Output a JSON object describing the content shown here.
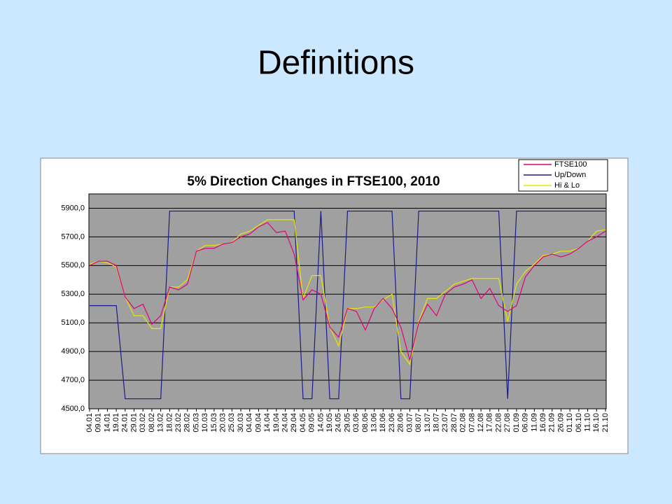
{
  "slide": {
    "title": "Definitions"
  },
  "chart_data": {
    "type": "line",
    "title": "5% Direction Changes in FTSE100, 2010",
    "categories": [
      "04.01",
      "09.01",
      "14.01",
      "19.01",
      "24.01",
      "29.01",
      "03.02",
      "08.02",
      "13.02",
      "18.02",
      "23.02",
      "28.02",
      "05.03",
      "10.03",
      "15.03",
      "20.03",
      "25.03",
      "30.03",
      "04.04",
      "09.04",
      "14.04",
      "19.04",
      "24.04",
      "29.04",
      "04.05",
      "09.05",
      "14.05",
      "19.05",
      "24.05",
      "29.05",
      "03.06",
      "08.06",
      "13.06",
      "18.06",
      "23.06",
      "28.06",
      "03.07",
      "08.07",
      "13.07",
      "18.07",
      "23.07",
      "28.07",
      "02.08",
      "07.08",
      "12.08",
      "17.08",
      "22.08",
      "27.08",
      "01.09",
      "06.09",
      "11.09",
      "16.09",
      "21.09",
      "26.09",
      "01.10",
      "06.10",
      "11.10",
      "16.10",
      "21.10"
    ],
    "series": [
      {
        "name": "FTSE100",
        "color": "#e0007a",
        "values": [
          5500,
          5530,
          5530,
          5500,
          5280,
          5200,
          5230,
          5090,
          5150,
          5350,
          5330,
          5370,
          5600,
          5620,
          5620,
          5650,
          5660,
          5700,
          5720,
          5770,
          5800,
          5730,
          5740,
          5580,
          5260,
          5330,
          5300,
          5070,
          5000,
          5200,
          5180,
          5050,
          5200,
          5270,
          5200,
          5070,
          4840,
          5100,
          5230,
          5150,
          5300,
          5350,
          5370,
          5400,
          5270,
          5340,
          5220,
          5180,
          5220,
          5420,
          5500,
          5560,
          5580,
          5560,
          5580,
          5620,
          5670,
          5700,
          5740
        ]
      },
      {
        "name": "Up/Down",
        "color": "#1a1a8c",
        "values": [
          5220,
          5220,
          5220,
          5220,
          4570,
          4570,
          4570,
          4570,
          4570,
          5880,
          5880,
          5880,
          5880,
          5880,
          5880,
          5880,
          5880,
          5880,
          5880,
          5880,
          5880,
          5880,
          5880,
          5880,
          4570,
          4570,
          5880,
          4570,
          4570,
          5880,
          5880,
          5880,
          5880,
          5880,
          5880,
          4570,
          4570,
          5880,
          5880,
          5880,
          5880,
          5880,
          5880,
          5880,
          5880,
          5880,
          5880,
          4570,
          5880,
          5880,
          5880,
          5880,
          5880,
          5880,
          5880,
          5880,
          5880,
          5880,
          5880
        ]
      },
      {
        "name": "Hi & Lo",
        "color": "#e8e800",
        "values": [
          5510,
          5530,
          5520,
          5490,
          5280,
          5150,
          5150,
          5060,
          5060,
          5350,
          5350,
          5400,
          5600,
          5640,
          5640,
          5650,
          5660,
          5720,
          5740,
          5780,
          5820,
          5820,
          5820,
          5820,
          5270,
          5430,
          5430,
          5070,
          4940,
          5200,
          5200,
          5210,
          5210,
          5260,
          5300,
          4900,
          4810,
          5110,
          5270,
          5270,
          5320,
          5370,
          5390,
          5410,
          5410,
          5410,
          5410,
          5110,
          5370,
          5460,
          5510,
          5570,
          5580,
          5600,
          5600,
          5620,
          5670,
          5740,
          5750
        ]
      }
    ],
    "ylim": [
      4500,
      6000
    ],
    "yticks": [
      {
        "value": 4500,
        "label": "4500,0"
      },
      {
        "value": 4700,
        "label": "4700,0"
      },
      {
        "value": 4900,
        "label": "4900,0"
      },
      {
        "value": 5100,
        "label": "5100,0"
      },
      {
        "value": 5300,
        "label": "5300,0"
      },
      {
        "value": 5500,
        "label": "5500,0"
      },
      {
        "value": 5700,
        "label": "5700,0"
      },
      {
        "value": 5900,
        "label": "5900,0"
      }
    ],
    "grid": true,
    "legend": "top-right",
    "plot_background": "#a0a0a0"
  }
}
